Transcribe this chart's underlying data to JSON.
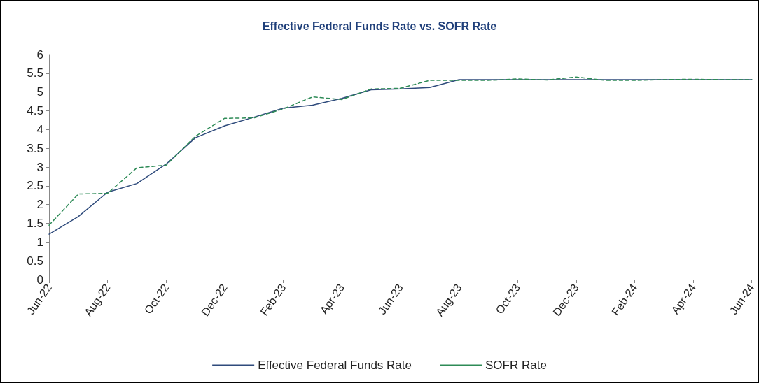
{
  "chart_data": {
    "type": "line",
    "title": "Effective Federal Funds Rate vs. SOFR Rate",
    "categories": [
      "Jun-22",
      null,
      "Aug-22",
      null,
      "Oct-22",
      null,
      "Dec-22",
      null,
      "Feb-23",
      null,
      "Apr-23",
      null,
      "Jun-23",
      null,
      "Aug-23",
      null,
      "Oct-23",
      null,
      "Dec-23",
      null,
      "Feb-24",
      null,
      "Apr-24",
      null,
      "Jun-24"
    ],
    "series": [
      {
        "name": "Effective Federal Funds Rate",
        "color": "#2f4b7c",
        "line_style": "solid",
        "values": [
          1.21,
          1.68,
          2.33,
          2.56,
          3.08,
          3.78,
          4.1,
          4.33,
          4.57,
          4.65,
          4.83,
          5.06,
          5.08,
          5.12,
          5.33,
          5.33,
          5.33,
          5.33,
          5.33,
          5.33,
          5.33,
          5.33,
          5.33,
          5.33,
          5.33
        ]
      },
      {
        "name": "SOFR Rate",
        "color": "#2e8b57",
        "line_style": "dashed",
        "values": [
          1.45,
          2.28,
          2.3,
          2.98,
          3.05,
          3.82,
          4.3,
          4.31,
          4.55,
          4.87,
          4.8,
          5.08,
          5.1,
          5.31,
          5.31,
          5.31,
          5.35,
          5.32,
          5.4,
          5.31,
          5.31,
          5.33,
          5.34,
          5.33,
          5.33
        ]
      }
    ],
    "ylim": [
      0,
      6
    ],
    "yticks": [
      0,
      0.5,
      1,
      1.5,
      2,
      2.5,
      3,
      3.5,
      4,
      4.5,
      5,
      5.5,
      6
    ],
    "grid": false,
    "legend": "bottom",
    "marker": "none"
  }
}
